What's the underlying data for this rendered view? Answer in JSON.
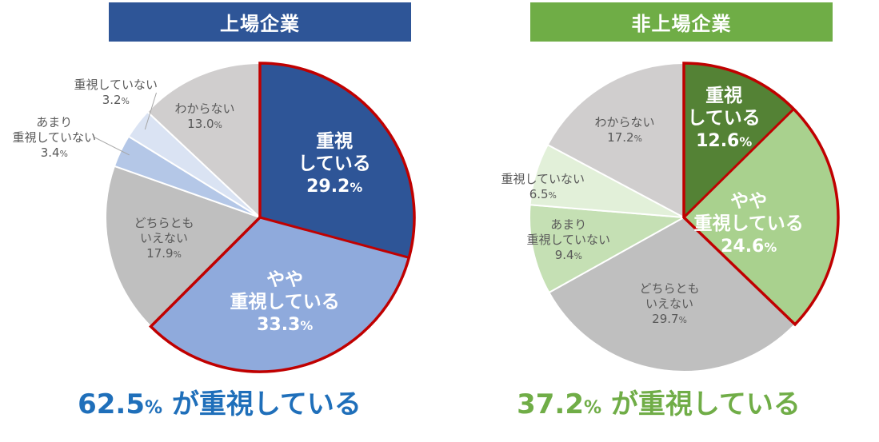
{
  "chart_data": [
    {
      "type": "pie",
      "title": "上場企業",
      "summary": {
        "value": "62.5",
        "unit": "%",
        "text": " が重視している"
      },
      "slices": [
        {
          "label": "重視している",
          "display": [
            "重視",
            "している"
          ],
          "value": 29.2,
          "color": "#2e5597"
        },
        {
          "label": "やや重視している",
          "display": [
            "やや",
            "重視している"
          ],
          "value": 33.3,
          "color": "#8faadc"
        },
        {
          "label": "どちらともいえない",
          "display": [
            "どちらとも",
            "いえない"
          ],
          "value": 17.9,
          "color": "#bfbfbf"
        },
        {
          "label": "あまり重視していない",
          "display": [
            "あまり",
            "重視していない"
          ],
          "value": 3.4,
          "color": "#b4c7e7"
        },
        {
          "label": "重視していない",
          "display": [
            "重視していない"
          ],
          "value": 3.2,
          "color": "#dae3f3"
        },
        {
          "label": "わからない",
          "display": [
            "わからない"
          ],
          "value": 13.0,
          "color": "#d0cece"
        }
      ],
      "highlight_color": "#c00000"
    },
    {
      "type": "pie",
      "title": "非上場企業",
      "summary": {
        "value": "37.2",
        "unit": "%",
        "text": " が重視している"
      },
      "slices": [
        {
          "label": "重視している",
          "display": [
            "重視",
            "している"
          ],
          "value": 12.6,
          "color": "#548235"
        },
        {
          "label": "やや重視している",
          "display": [
            "やや",
            "重視している"
          ],
          "value": 24.6,
          "color": "#a9d18e"
        },
        {
          "label": "どちらともいえない",
          "display": [
            "どちらとも",
            "いえない"
          ],
          "value": 29.7,
          "color": "#bfbfbf"
        },
        {
          "label": "あまり重視していない",
          "display": [
            "あまり",
            "重視していない"
          ],
          "value": 9.4,
          "color": "#c5e0b4"
        },
        {
          "label": "重視していない",
          "display": [
            "重視していない"
          ],
          "value": 6.5,
          "color": "#e2f0d9"
        },
        {
          "label": "わからない",
          "display": [
            "わからない"
          ],
          "value": 17.2,
          "color": "#d0cece"
        }
      ],
      "highlight_color": "#c00000"
    }
  ]
}
